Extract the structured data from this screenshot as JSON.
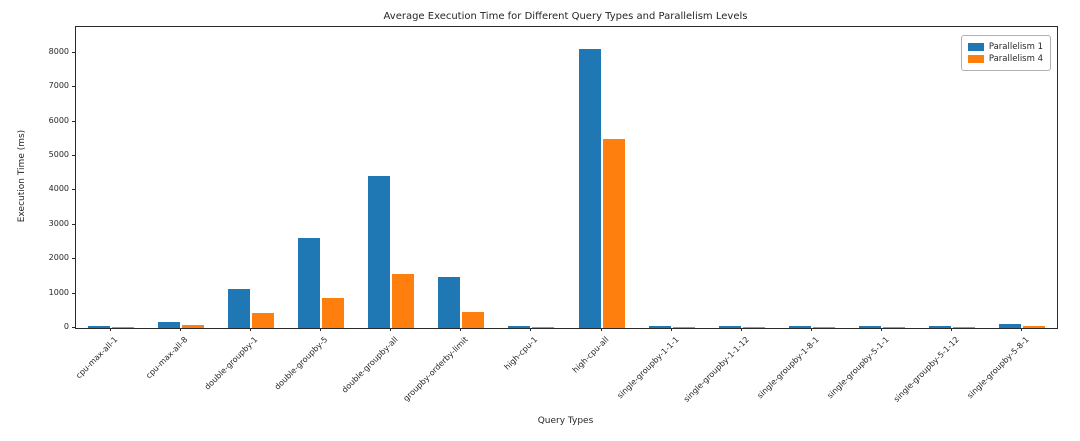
{
  "chart_data": {
    "type": "bar",
    "title": "Average Execution Time for Different Query Types and Parallelism Levels",
    "xlabel": "Query Types",
    "ylabel": "Execution Time (ms)",
    "categories": [
      "cpu-max-all-1",
      "cpu-max-all-8",
      "double-groupby-1",
      "double-groupby-5",
      "double-groupby-all",
      "groupby-orderby-limit",
      "high-cpu-1",
      "high-cpu-all",
      "single-groupby-1-1-1",
      "single-groupby-1-1-12",
      "single-groupby-1-8-1",
      "single-groupby-5-1-1",
      "single-groupby-5-1-12",
      "single-groupby-5-8-1"
    ],
    "series": [
      {
        "name": "Parallelism 1",
        "color": "#1f77b4",
        "values": [
          60,
          180,
          1120,
          2620,
          4420,
          1490,
          55,
          8100,
          45,
          50,
          65,
          62,
          72,
          108
        ]
      },
      {
        "name": "Parallelism 4",
        "color": "#ff7f0e",
        "values": [
          25,
          85,
          430,
          860,
          1560,
          460,
          15,
          5480,
          18,
          20,
          28,
          22,
          28,
          52
        ]
      }
    ],
    "yticks": [
      0,
      1000,
      2000,
      3000,
      4000,
      5000,
      6000,
      7000,
      8000
    ],
    "ylim": [
      0,
      8750
    ],
    "grid": false,
    "legend_position": "upper right"
  }
}
